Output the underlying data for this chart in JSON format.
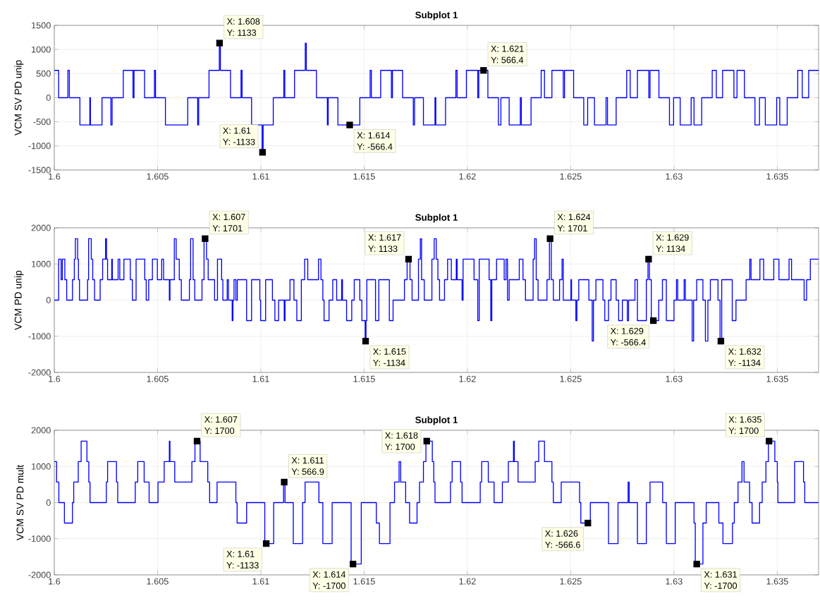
{
  "chart_data": [
    {
      "type": "step",
      "title": "Subplot 1",
      "ylabel": "VCM SV PD unip",
      "color": "#0000ff",
      "grid": true,
      "xlim": [
        1.6,
        1.637
      ],
      "xticks": [
        1.6,
        1.605,
        1.61,
        1.615,
        1.62,
        1.625,
        1.63,
        1.635
      ],
      "ylim": [
        -1500,
        1500
      ],
      "yticks": [
        -1500,
        -1000,
        -500,
        0,
        500,
        1000,
        1500
      ],
      "x": [
        1.6,
        1.60021,
        1.60066,
        1.60073,
        1.60124,
        1.60172,
        1.60175,
        1.60231,
        1.60274,
        1.6028,
        1.60334,
        1.60381,
        1.60386,
        1.60437,
        1.60485,
        1.6049,
        1.60538,
        1.60646,
        1.60694,
        1.60699,
        1.60749,
        1.60799,
        1.60804,
        1.60853,
        1.60904,
        1.60909,
        1.60955,
        1.61006,
        1.61011,
        1.6106,
        1.61111,
        1.61116,
        1.61163,
        1.61215,
        1.6122,
        1.61269,
        1.61322,
        1.61326,
        1.61373,
        1.61479,
        1.61529,
        1.61535,
        1.6158,
        1.61632,
        1.61637,
        1.61686,
        1.61738,
        1.61744,
        1.61787,
        1.61843,
        1.61847,
        1.61894,
        1.61944,
        1.6195,
        1.61995,
        1.6205,
        1.62055,
        1.62099,
        1.6215,
        1.62162,
        1.62202,
        1.62256,
        1.62261,
        1.62308,
        1.62357,
        1.62373,
        1.62409,
        1.62464,
        1.6247,
        1.62514,
        1.62563,
        1.62582,
        1.62615,
        1.62671,
        1.62678,
        1.6272,
        1.62771,
        1.62788,
        1.62823,
        1.62878,
        1.62884,
        1.62927,
        1.62978,
        1.62998,
        1.6303,
        1.63083,
        1.63097,
        1.63134,
        1.63185,
        1.63205,
        1.63235,
        1.6329,
        1.63305,
        1.63341,
        1.63392,
        1.63414,
        1.63442,
        1.63497,
        1.63512,
        1.63548,
        1.63599,
        1.63621,
        1.63652,
        1.637
      ],
      "values": [
        566.4,
        0,
        566.4,
        0,
        -566.4,
        0,
        -566.4,
        0,
        -566.4,
        0,
        566.4,
        0,
        566.4,
        0,
        566.4,
        0,
        -566.4,
        0,
        -566.4,
        0,
        566.4,
        1133,
        566.4,
        0,
        566.4,
        0,
        -566.4,
        -1133,
        -566.4,
        0,
        566.4,
        0,
        566.4,
        1133,
        566.4,
        0,
        -566.4,
        0,
        -566.4,
        0,
        566.4,
        0,
        566.4,
        0,
        566.4,
        0,
        -566.4,
        0,
        -566.4,
        0,
        -566.4,
        0,
        566.4,
        0,
        566.4,
        0,
        566.4,
        0,
        -566.4,
        0,
        -566.4,
        0,
        -566.4,
        0,
        566.4,
        0,
        566.4,
        0,
        566.4,
        0,
        -566.4,
        0,
        -566.4,
        0,
        -566.4,
        0,
        566.4,
        0,
        566.4,
        0,
        566.4,
        0,
        -566.4,
        0,
        -566.4,
        0,
        -566.4,
        0,
        566.4,
        0,
        566.4,
        0,
        566.4,
        0,
        -566.4,
        0,
        -566.4,
        0,
        -566.4,
        0,
        566.4,
        0,
        566.4,
        566.4
      ],
      "annotations": [
        {
          "text": "X: 1.608",
          "x": 1.608,
          "y": 1133
        },
        {
          "text": "Y: 1133",
          "x": 1.608,
          "y": 1133
        },
        {
          "text": "X: 1.61",
          "x": 1.61008,
          "y": -1133
        },
        {
          "text": "Y: -1133",
          "x": 1.61008,
          "y": -1133
        },
        {
          "text": "X: 1.614",
          "x": 1.6143,
          "y": -566.4
        },
        {
          "text": "Y: -566.4",
          "x": 1.6143,
          "y": -566.4
        },
        {
          "text": "X: 1.621",
          "x": 1.62078,
          "y": 566.4
        },
        {
          "text": "Y: 566.4",
          "x": 1.62078,
          "y": 566.4
        }
      ]
    },
    {
      "type": "step",
      "title": "Subplot 1",
      "ylabel": "VCM PD unip",
      "color": "#0000ff",
      "grid": true,
      "xlim": [
        1.6,
        1.637
      ],
      "xticks": [
        1.6,
        1.605,
        1.61,
        1.615,
        1.62,
        1.625,
        1.63,
        1.635
      ],
      "ylim": [
        -2000,
        2000
      ],
      "yticks": [
        -2000,
        -1000,
        0,
        1000,
        2000
      ],
      "x": [
        1.6,
        1.60021,
        1.60033,
        1.60039,
        1.60051,
        1.6006,
        1.60088,
        1.60097,
        1.60102,
        1.60113,
        1.60117,
        1.60122,
        1.60161,
        1.60166,
        1.60179,
        1.60186,
        1.60195,
        1.60222,
        1.60234,
        1.60248,
        1.60253,
        1.60258,
        1.60278,
        1.60281,
        1.60309,
        1.60317,
        1.60337,
        1.60368,
        1.60378,
        1.60396,
        1.60438,
        1.60445,
        1.60457,
        1.60475,
        1.60499,
        1.6052,
        1.60529,
        1.60557,
        1.6056,
        1.60581,
        1.6059,
        1.60605,
        1.60615,
        1.60654,
        1.6066,
        1.60672,
        1.6068,
        1.60715,
        1.60725,
        1.60737,
        1.60745,
        1.60776,
        1.6079,
        1.6081,
        1.60816,
        1.60837,
        1.60843,
        1.60861,
        1.60865,
        1.6087,
        1.60879,
        1.60886,
        1.60931,
        1.60955,
        1.60995,
        1.60999,
        1.61023,
        1.61056,
        1.61068,
        1.61086,
        1.61113,
        1.61117,
        1.61141,
        1.6116,
        1.61174,
        1.61196,
        1.61212,
        1.61227,
        1.61279,
        1.61291,
        1.613,
        1.61306,
        1.6133,
        1.61348,
        1.61367,
        1.61391,
        1.61395,
        1.61415,
        1.6144,
        1.61452,
        1.61479,
        1.61489,
        1.61505,
        1.61509,
        1.61513,
        1.61555,
        1.61571,
        1.61622,
        1.6164,
        1.61695,
        1.61708,
        1.61722,
        1.61732,
        1.61763,
        1.61772,
        1.61778,
        1.61791,
        1.61828,
        1.61839,
        1.61849,
        1.61857,
        1.61865,
        1.61889,
        1.61904,
        1.61922,
        1.61946,
        1.6195,
        1.61974,
        1.61979,
        1.62032,
        1.6205,
        1.62057,
        1.62105,
        1.62113,
        1.62118,
        1.62141,
        1.62178,
        1.62187,
        1.62194,
        1.62202,
        1.62251,
        1.62269,
        1.62281,
        1.62318,
        1.62325,
        1.62333,
        1.62342,
        1.62385,
        1.62397,
        1.62406,
        1.62416,
        1.62446,
        1.62458,
        1.62464,
        1.62501,
        1.62504,
        1.62525,
        1.6253,
        1.62539,
        1.62588,
        1.62604,
        1.6261,
        1.62622,
        1.62656,
        1.62665,
        1.62683,
        1.62695,
        1.6272,
        1.62732,
        1.6275,
        1.62774,
        1.6278,
        1.62811,
        1.62823,
        1.62866,
        1.62874,
        1.62881,
        1.6289,
        1.62926,
        1.62944,
        1.62963,
        1.63,
        1.63012,
        1.63018,
        1.63049,
        1.63055,
        1.63088,
        1.63095,
        1.6311,
        1.6314,
        1.63152,
        1.63164,
        1.63176,
        1.63213,
        1.63223,
        1.63231,
        1.63282,
        1.633,
        1.63349,
        1.63367,
        1.63373,
        1.63416,
        1.63434,
        1.63483,
        1.63508,
        1.63557,
        1.63569,
        1.6363,
        1.63642,
        1.6366,
        1.637
      ],
      "values": [
        0,
        1133,
        566.4,
        1133,
        566.4,
        0,
        566.4,
        1133,
        1701,
        1133,
        566.4,
        0,
        566.4,
        1701,
        1133,
        566.4,
        0,
        566.4,
        1133,
        1701,
        1133,
        566.4,
        1133,
        566.4,
        1133,
        566.4,
        1133,
        566.4,
        0,
        1133,
        566.4,
        0,
        566.4,
        1133,
        566.4,
        1133,
        566.4,
        0,
        566.4,
        1701,
        1133,
        566.4,
        0,
        566.4,
        1701,
        566.4,
        0,
        566.4,
        1701,
        1133,
        566.4,
        0,
        1133,
        566.4,
        0,
        566.4,
        0,
        -566.4,
        0,
        566.4,
        0,
        566.4,
        -566.4,
        566.4,
        0,
        -566.4,
        566.4,
        0,
        -566.4,
        0,
        -566.4,
        0,
        566.4,
        0,
        -566.4,
        566.4,
        1133,
        566.4,
        1133,
        566.4,
        0,
        -566.4,
        0,
        566.4,
        0,
        566.4,
        0,
        -566.4,
        0,
        566.4,
        0,
        -566.4,
        -1134,
        -566.4,
        566.4,
        -566.4,
        566.4,
        -566.4,
        0,
        566.4,
        1133,
        566.4,
        0,
        1133,
        1701,
        566.4,
        0,
        1133,
        1701,
        1133,
        566.4,
        0,
        566.4,
        1133,
        566.4,
        1133,
        566.4,
        0,
        1133,
        566.4,
        -566.4,
        1133,
        566.4,
        -566.4,
        566.4,
        1133,
        566.4,
        1133,
        0,
        566.4,
        1133,
        566.4,
        0,
        1133,
        1701,
        566.4,
        0,
        566.4,
        1701,
        566.4,
        0,
        566.4,
        1133,
        0,
        566.4,
        0,
        -566.4,
        0,
        566.4,
        0,
        -1134,
        0,
        566.4,
        0,
        -566.4,
        0,
        566.4,
        0,
        -566.4,
        0,
        -566.4,
        0,
        566.4,
        -566.4,
        566.4,
        1134,
        566.4,
        -566.4,
        0,
        566.4,
        -566.4,
        0,
        566.4,
        0,
        566.4,
        0,
        -1134,
        0,
        566.4,
        0,
        -1134,
        0,
        566.4,
        0,
        -1134,
        566.4,
        -566.4,
        0,
        566.4,
        1133,
        566.4,
        1133,
        566.4,
        1133,
        566.4,
        1133,
        566.4,
        0,
        566.4,
        1133,
        1133
      ],
      "annotations": [
        {
          "text": "X: 1.607",
          "x": 1.6073,
          "y": 1701
        },
        {
          "text": "Y: 1701",
          "x": 1.6073,
          "y": 1701
        },
        {
          "text": "X: 1.617",
          "x": 1.61715,
          "y": 1133
        },
        {
          "text": "Y: 1133",
          "x": 1.61715,
          "y": 1133
        },
        {
          "text": "X: 1.615",
          "x": 1.61507,
          "y": -1134
        },
        {
          "text": "Y: -1134",
          "x": 1.61507,
          "y": -1134
        },
        {
          "text": "X: 1.624",
          "x": 1.624,
          "y": 1701
        },
        {
          "text": "Y: 1701",
          "x": 1.624,
          "y": 1701
        },
        {
          "text": "X: 1.629",
          "x": 1.62877,
          "y": 1134
        },
        {
          "text": "Y: 1134",
          "x": 1.62877,
          "y": 1134
        },
        {
          "text": "X: 1.629",
          "x": 1.629,
          "y": -566.4
        },
        {
          "text": "Y: -566.4",
          "x": 1.629,
          "y": -566.4
        },
        {
          "text": "X: 1.632",
          "x": 1.63227,
          "y": -1134
        },
        {
          "text": "Y: -1134",
          "x": 1.63227,
          "y": -1134
        }
      ]
    },
    {
      "type": "step",
      "title": "Subplot 1",
      "ylabel": "VCM SV PD mult",
      "color": "#0000ff",
      "grid": true,
      "xlim": [
        1.6,
        1.637
      ],
      "xticks": [
        1.6,
        1.605,
        1.61,
        1.615,
        1.62,
        1.625,
        1.63,
        1.635
      ],
      "ylim": [
        -2000,
        2000
      ],
      "yticks": [
        -2000,
        -1000,
        0,
        1000,
        2000
      ],
      "x": [
        1.6,
        1.60011,
        1.60022,
        1.60049,
        1.60088,
        1.60094,
        1.60116,
        1.6013,
        1.60158,
        1.60167,
        1.60173,
        1.60252,
        1.60258,
        1.60301,
        1.60307,
        1.60392,
        1.60404,
        1.60435,
        1.60459,
        1.60502,
        1.60532,
        1.60557,
        1.6056,
        1.60583,
        1.60666,
        1.60681,
        1.60706,
        1.60743,
        1.60752,
        1.60788,
        1.60879,
        1.60885,
        1.60931,
        1.61019,
        1.61062,
        1.6111,
        1.61117,
        1.61157,
        1.61202,
        1.61214,
        1.61281,
        1.613,
        1.61345,
        1.61437,
        1.61486,
        1.61559,
        1.61574,
        1.61625,
        1.61647,
        1.61669,
        1.61677,
        1.61701,
        1.6172,
        1.61756,
        1.61768,
        1.61787,
        1.61799,
        1.6183,
        1.61837,
        1.61843,
        1.61918,
        1.61926,
        1.61967,
        1.61974,
        1.62062,
        1.62069,
        1.62101,
        1.62129,
        1.62169,
        1.62198,
        1.62223,
        1.62227,
        1.62245,
        1.62328,
        1.62345,
        1.62373,
        1.62409,
        1.62416,
        1.62454,
        1.62543,
        1.62549,
        1.62595,
        1.62683,
        1.62729,
        1.62778,
        1.62783,
        1.62823,
        1.62866,
        1.62884,
        1.62945,
        1.62963,
        1.63006,
        1.63097,
        1.63103,
        1.6314,
        1.63156,
        1.63217,
        1.63237,
        1.63283,
        1.63292,
        1.6331,
        1.63329,
        1.63339,
        1.63366,
        1.63378,
        1.63414,
        1.63427,
        1.63445,
        1.63457,
        1.63488,
        1.635,
        1.63503,
        1.63584,
        1.63627,
        1.63633,
        1.637
      ],
      "values": [
        1133,
        566.9,
        0,
        -566.6,
        0,
        566.9,
        1133,
        1700,
        1133,
        566.9,
        0,
        566.9,
        1133,
        566.9,
        0,
        566.9,
        1133,
        566.9,
        0,
        566.9,
        1133,
        1700,
        1133,
        566.9,
        1133,
        1700,
        1133,
        566.9,
        0,
        566.9,
        0,
        -566.6,
        0,
        -1133,
        0,
        566.9,
        0,
        -1133,
        0,
        566.9,
        0,
        -1133,
        0,
        -1700,
        0,
        -566.6,
        -1133,
        0,
        566.9,
        1133,
        566.9,
        0,
        -566.6,
        0,
        566.9,
        1133,
        1700,
        1133,
        566.9,
        0,
        566.9,
        1133,
        566.9,
        0,
        566.9,
        1133,
        566.9,
        0,
        566.9,
        1133,
        1700,
        1133,
        566.9,
        1133,
        1700,
        1133,
        566.9,
        0,
        566.9,
        0,
        -566.6,
        0,
        -1133,
        0,
        566.9,
        0,
        -1133,
        0,
        566.9,
        0,
        -1133,
        0,
        -566.6,
        -1700,
        -566.6,
        0,
        -566.6,
        -1133,
        -566.6,
        0,
        566.9,
        1133,
        566.9,
        0,
        -566.6,
        0,
        566.9,
        1133,
        1700,
        1133,
        566.9,
        0,
        1133,
        566.9,
        0,
        0
      ],
      "annotations": [
        {
          "text": "X: 1.607",
          "x": 1.60691,
          "y": 1700
        },
        {
          "text": "Y: 1700",
          "x": 1.60691,
          "y": 1700
        },
        {
          "text": "X: 1.611",
          "x": 1.61113,
          "y": 566.9
        },
        {
          "text": "Y: 566.9",
          "x": 1.61113,
          "y": 566.9
        },
        {
          "text": "X: 1.61",
          "x": 1.61026,
          "y": -1133
        },
        {
          "text": "Y: -1133",
          "x": 1.61026,
          "y": -1133
        },
        {
          "text": "X: 1.614",
          "x": 1.61446,
          "y": -1700
        },
        {
          "text": "Y: -1700",
          "x": 1.61446,
          "y": -1700
        },
        {
          "text": "X: 1.618",
          "x": 1.61803,
          "y": 1700
        },
        {
          "text": "Y: 1700",
          "x": 1.61803,
          "y": 1700
        },
        {
          "text": "X: 1.626",
          "x": 1.62583,
          "y": -566.6
        },
        {
          "text": "Y: -566.6",
          "x": 1.62583,
          "y": -566.6
        },
        {
          "text": "X: 1.631",
          "x": 1.6311,
          "y": -1700
        },
        {
          "text": "Y: -1700",
          "x": 1.6311,
          "y": -1700
        },
        {
          "text": "X: 1.635",
          "x": 1.6346,
          "y": 1700
        },
        {
          "text": "Y: 1700",
          "x": 1.6346,
          "y": 1700
        }
      ]
    }
  ]
}
